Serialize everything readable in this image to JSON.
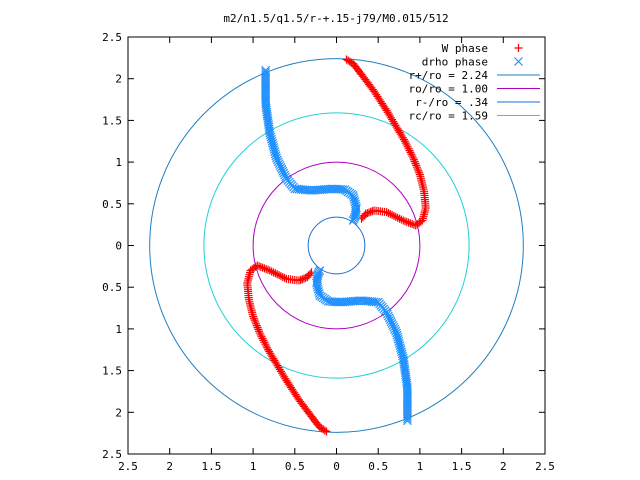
{
  "chart_data": {
    "type": "scatter",
    "title": "m2/n1.5/q1.5/r-+.15-j79/M0.015/512",
    "xlabel": "",
    "ylabel": "",
    "xlim": [
      -2.5,
      2.5
    ],
    "ylim": [
      -2.5,
      2.5
    ],
    "x_ticks": [
      -2.5,
      -2,
      -1.5,
      -1,
      -0.5,
      0,
      0.5,
      1,
      1.5,
      2,
      2.5
    ],
    "y_ticks": [
      -2.5,
      -2,
      -1.5,
      -1,
      -0.5,
      0,
      0.5,
      1,
      1.5,
      2,
      2.5
    ],
    "x_tick_labels": [
      "2.5",
      "2",
      "1.5",
      "1",
      "0.5",
      "0",
      "0.5",
      "1",
      "1.5",
      "2",
      "2.5"
    ],
    "y_tick_labels": [
      "2.5",
      "2",
      "1.5",
      "1",
      "0.5",
      "0",
      "0.5",
      "1",
      "1.5",
      "2",
      "2.5"
    ],
    "grid": false,
    "legend_position": "top-right",
    "series": [
      {
        "name": "W phase",
        "kind": "points",
        "marker": "+",
        "color": "#ff0000",
        "paths": [
          [
            [
              0.12,
              2.23
            ],
            [
              0.2,
              2.18
            ],
            [
              0.3,
              2.05
            ],
            [
              0.45,
              1.85
            ],
            [
              0.6,
              1.62
            ],
            [
              0.72,
              1.42
            ],
            [
              0.82,
              1.25
            ],
            [
              0.92,
              1.05
            ],
            [
              1.0,
              0.85
            ],
            [
              1.05,
              0.65
            ],
            [
              1.07,
              0.45
            ],
            [
              1.03,
              0.3
            ],
            [
              0.95,
              0.24
            ],
            [
              0.8,
              0.3
            ],
            [
              0.6,
              0.4
            ],
            [
              0.45,
              0.42
            ],
            [
              0.35,
              0.38
            ],
            [
              0.3,
              0.32
            ]
          ],
          [
            [
              -0.12,
              -2.23
            ],
            [
              -0.2,
              -2.18
            ],
            [
              -0.3,
              -2.05
            ],
            [
              -0.45,
              -1.85
            ],
            [
              -0.6,
              -1.62
            ],
            [
              -0.72,
              -1.42
            ],
            [
              -0.82,
              -1.25
            ],
            [
              -0.92,
              -1.05
            ],
            [
              -1.0,
              -0.85
            ],
            [
              -1.05,
              -0.65
            ],
            [
              -1.07,
              -0.45
            ],
            [
              -1.03,
              -0.3
            ],
            [
              -0.95,
              -0.24
            ],
            [
              -0.8,
              -0.3
            ],
            [
              -0.6,
              -0.4
            ],
            [
              -0.45,
              -0.42
            ],
            [
              -0.35,
              -0.38
            ],
            [
              -0.3,
              -0.32
            ]
          ]
        ]
      },
      {
        "name": "drho phase",
        "kind": "points",
        "marker": "x",
        "color": "#1e90ff",
        "paths": [
          [
            [
              -0.85,
              2.1
            ],
            [
              -0.85,
              1.7
            ],
            [
              -0.8,
              1.35
            ],
            [
              -0.72,
              1.05
            ],
            [
              -0.6,
              0.8
            ],
            [
              -0.5,
              0.68
            ],
            [
              -0.3,
              0.66
            ],
            [
              -0.05,
              0.68
            ],
            [
              0.1,
              0.67
            ],
            [
              0.2,
              0.6
            ],
            [
              0.24,
              0.45
            ],
            [
              0.22,
              0.34
            ],
            [
              0.2,
              0.3
            ]
          ],
          [
            [
              0.85,
              -2.1
            ],
            [
              0.85,
              -1.7
            ],
            [
              0.8,
              -1.35
            ],
            [
              0.72,
              -1.05
            ],
            [
              0.6,
              -0.8
            ],
            [
              0.5,
              -0.68
            ],
            [
              0.3,
              -0.66
            ],
            [
              0.05,
              -0.68
            ],
            [
              -0.1,
              -0.67
            ],
            [
              -0.2,
              -0.6
            ],
            [
              -0.24,
              -0.45
            ],
            [
              -0.22,
              -0.34
            ],
            [
              -0.2,
              -0.3
            ]
          ]
        ]
      },
      {
        "name": "r+/ro = 2.24",
        "kind": "circle",
        "radius": 2.24,
        "color": "#1f7fbf"
      },
      {
        "name": "ro/ro = 1.00",
        "kind": "circle",
        "radius": 1.0,
        "color": "#b000c0"
      },
      {
        "name": "r-/ro = .34",
        "kind": "circle",
        "radius": 0.34,
        "color": "#1a6fd6"
      },
      {
        "name": "rc/ro = 1.59",
        "kind": "circle",
        "radius": 1.59,
        "color": "#20d0d8"
      }
    ]
  }
}
